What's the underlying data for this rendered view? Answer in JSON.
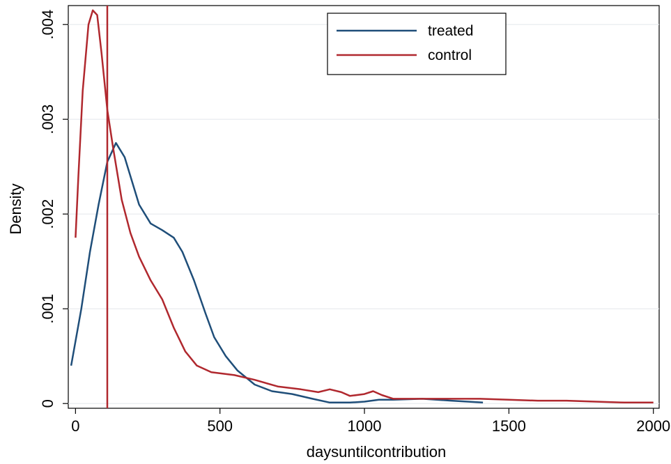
{
  "chart_data": {
    "type": "line",
    "title": "",
    "xlabel": "daysuntilcontribution",
    "ylabel": "Density",
    "xlim": [
      -25,
      2020
    ],
    "ylim": [
      -5e-05,
      0.0042
    ],
    "xticks": [
      0,
      500,
      1000,
      1500,
      2000
    ],
    "xtick_labels": [
      "0",
      "500",
      "1000",
      "1500",
      "2000"
    ],
    "yticks": [
      0,
      0.001,
      0.002,
      0.003,
      0.004
    ],
    "ytick_labels": [
      "0",
      ".001",
      ".002",
      ".003",
      ".004"
    ],
    "grid": true,
    "legend": "top-center",
    "reference_line": {
      "x": 110,
      "color": "#b0282e"
    },
    "series": [
      {
        "name": "treated",
        "color": "#1f4e79",
        "points": [
          [
            -15,
            0.0004
          ],
          [
            20,
            0.001
          ],
          [
            50,
            0.0016
          ],
          [
            80,
            0.0021
          ],
          [
            110,
            0.00255
          ],
          [
            140,
            0.00275
          ],
          [
            170,
            0.0026
          ],
          [
            200,
            0.0023
          ],
          [
            220,
            0.0021
          ],
          [
            260,
            0.0019
          ],
          [
            300,
            0.00183
          ],
          [
            340,
            0.00175
          ],
          [
            370,
            0.0016
          ],
          [
            410,
            0.0013
          ],
          [
            450,
            0.00095
          ],
          [
            480,
            0.0007
          ],
          [
            520,
            0.0005
          ],
          [
            560,
            0.00035
          ],
          [
            620,
            0.0002
          ],
          [
            680,
            0.00013
          ],
          [
            750,
            0.0001
          ],
          [
            820,
            5e-05
          ],
          [
            880,
            1e-05
          ],
          [
            950,
            1e-05
          ],
          [
            1000,
            2e-05
          ],
          [
            1050,
            4e-05
          ],
          [
            1100,
            4e-05
          ],
          [
            1200,
            5e-05
          ],
          [
            1300,
            3e-05
          ],
          [
            1410,
            1e-05
          ]
        ]
      },
      {
        "name": "control",
        "color": "#b0282e",
        "points": [
          [
            0,
            0.00175
          ],
          [
            10,
            0.0024
          ],
          [
            25,
            0.0033
          ],
          [
            45,
            0.004
          ],
          [
            60,
            0.00415
          ],
          [
            75,
            0.0041
          ],
          [
            90,
            0.0037
          ],
          [
            110,
            0.0031
          ],
          [
            130,
            0.0027
          ],
          [
            160,
            0.00215
          ],
          [
            190,
            0.0018
          ],
          [
            220,
            0.00155
          ],
          [
            260,
            0.0013
          ],
          [
            300,
            0.0011
          ],
          [
            340,
            0.0008
          ],
          [
            380,
            0.00055
          ],
          [
            420,
            0.0004
          ],
          [
            470,
            0.00033
          ],
          [
            550,
            0.0003
          ],
          [
            620,
            0.00025
          ],
          [
            700,
            0.00018
          ],
          [
            780,
            0.00015
          ],
          [
            840,
            0.00012
          ],
          [
            880,
            0.00015
          ],
          [
            920,
            0.00012
          ],
          [
            950,
            8e-05
          ],
          [
            1000,
            0.0001
          ],
          [
            1030,
            0.00013
          ],
          [
            1060,
            9e-05
          ],
          [
            1100,
            5e-05
          ],
          [
            1200,
            5e-05
          ],
          [
            1300,
            5e-05
          ],
          [
            1400,
            5e-05
          ],
          [
            1500,
            4e-05
          ],
          [
            1600,
            3e-05
          ],
          [
            1700,
            3e-05
          ],
          [
            1800,
            2e-05
          ],
          [
            1900,
            1e-05
          ],
          [
            2000,
            1e-05
          ]
        ]
      }
    ]
  }
}
